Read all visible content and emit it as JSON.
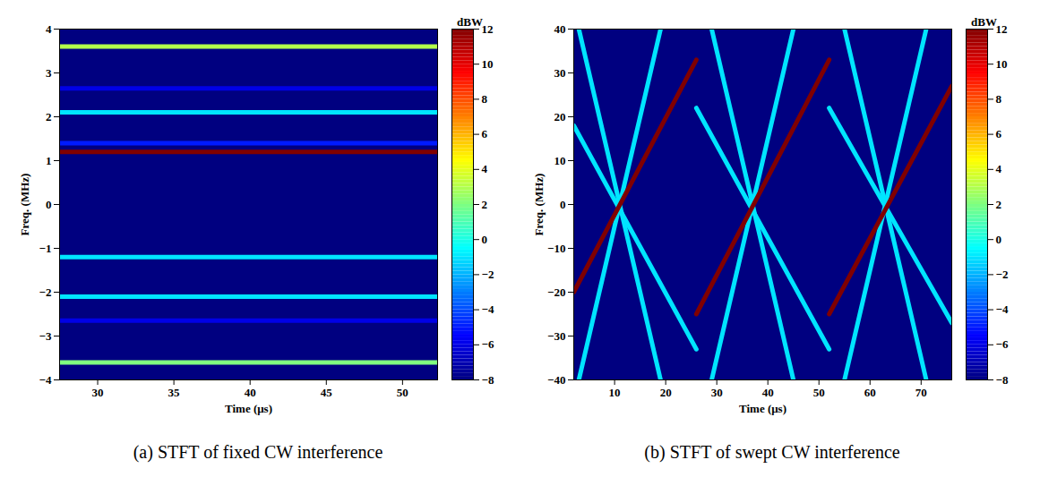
{
  "chart_data": [
    {
      "type": "spectrogram",
      "title": "(a) STFT of fixed CW interference",
      "x_label": "Time (μs)",
      "y_label": "Freq. (MHz)",
      "xlim": [
        27.5,
        52.3
      ],
      "xticks": [
        30,
        35,
        40,
        45,
        50
      ],
      "ylim": [
        -4,
        4
      ],
      "yticks": [
        -4,
        -3,
        -2,
        -1,
        0,
        1,
        2,
        3,
        4
      ],
      "background_power": -8,
      "tracks": [
        {
          "x": [
            27.5,
            52.3
          ],
          "y": [
            2.65,
            2.65
          ],
          "power": -6
        },
        {
          "x": [
            27.5,
            52.3
          ],
          "y": [
            -2.65,
            -2.65
          ],
          "power": -6
        },
        {
          "x": [
            27.5,
            52.3
          ],
          "y": [
            1.4,
            1.4
          ],
          "power": -5
        },
        {
          "x": [
            27.5,
            52.3
          ],
          "y": [
            2.1,
            2.1
          ],
          "power": -1
        },
        {
          "x": [
            27.5,
            52.3
          ],
          "y": [
            -1.2,
            -1.2
          ],
          "power": -1
        },
        {
          "x": [
            27.5,
            52.3
          ],
          "y": [
            -2.1,
            -2.1
          ],
          "power": -1
        },
        {
          "x": [
            27.5,
            52.3
          ],
          "y": [
            3.6,
            3.6
          ],
          "power": 3
        },
        {
          "x": [
            27.5,
            52.3
          ],
          "y": [
            -3.6,
            -3.6
          ],
          "power": 2
        },
        {
          "x": [
            27.5,
            52.3
          ],
          "y": [
            1.2,
            1.2
          ],
          "power": 12
        }
      ],
      "colorbar": {
        "label": "dBW",
        "range": [
          -8,
          12
        ],
        "ticks": [
          -8,
          -6,
          -4,
          -2,
          0,
          2,
          4,
          6,
          8,
          10,
          12
        ]
      }
    },
    {
      "type": "spectrogram",
      "title": "(b) STFT of swept CW interference",
      "x_label": "Time (μs)",
      "y_label": "Freq. (MHz)",
      "xlim": [
        2,
        76
      ],
      "xticks": [
        10,
        20,
        30,
        40,
        50,
        60,
        70
      ],
      "ylim": [
        -40,
        40
      ],
      "yticks": [
        -40,
        -30,
        -20,
        -10,
        0,
        10,
        20,
        30,
        40
      ],
      "background_power": -8,
      "tracks": [
        {
          "x": [
            3,
            19
          ],
          "y": [
            40,
            -40
          ],
          "power": -1
        },
        {
          "x": [
            3,
            19
          ],
          "y": [
            -40,
            40
          ],
          "power": -1
        },
        {
          "x": [
            2,
            26
          ],
          "y": [
            18,
            -33
          ],
          "power": -1
        },
        {
          "x": [
            29,
            45
          ],
          "y": [
            40,
            -40
          ],
          "power": -1
        },
        {
          "x": [
            29,
            45
          ],
          "y": [
            -40,
            40
          ],
          "power": -1
        },
        {
          "x": [
            26,
            52
          ],
          "y": [
            22,
            -33
          ],
          "power": -1
        },
        {
          "x": [
            55,
            71
          ],
          "y": [
            40,
            -40
          ],
          "power": -1
        },
        {
          "x": [
            55,
            71
          ],
          "y": [
            -40,
            40
          ],
          "power": -1
        },
        {
          "x": [
            52,
            76
          ],
          "y": [
            22,
            -27
          ],
          "power": -1
        },
        {
          "x": [
            2,
            26
          ],
          "y": [
            -20,
            33
          ],
          "power": 12
        },
        {
          "x": [
            26,
            52
          ],
          "y": [
            -25,
            33
          ],
          "power": 12
        },
        {
          "x": [
            52,
            76
          ],
          "y": [
            -25,
            27
          ],
          "power": 12
        }
      ],
      "colorbar": {
        "label": "dBW",
        "range": [
          -8,
          12
        ],
        "ticks": [
          -8,
          -6,
          -4,
          -2,
          0,
          2,
          4,
          6,
          8,
          10,
          12
        ]
      }
    }
  ]
}
